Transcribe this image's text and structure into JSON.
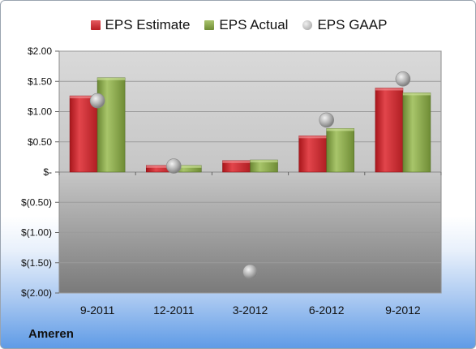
{
  "chart_data": {
    "type": "bar",
    "categories": [
      "9-2011",
      "12-2011",
      "3-2012",
      "6-2012",
      "9-2012"
    ],
    "series": [
      {
        "name": "EPS Estimate",
        "kind": "bar",
        "color": "#c8252b",
        "values": [
          1.26,
          0.11,
          0.19,
          0.6,
          1.39
        ]
      },
      {
        "name": "EPS Actual",
        "kind": "bar",
        "color": "#8aaa4a",
        "values": [
          1.56,
          0.11,
          0.2,
          0.72,
          1.31
        ]
      },
      {
        "name": "EPS GAAP",
        "kind": "scatter",
        "color": "#a6a6a6",
        "values": [
          1.18,
          0.1,
          -1.65,
          0.86,
          1.54
        ]
      }
    ],
    "ylim": [
      -2.0,
      2.0
    ],
    "yticks": [
      {
        "value": 2.0,
        "label": "$2.00"
      },
      {
        "value": 1.5,
        "label": "$1.50"
      },
      {
        "value": 1.0,
        "label": "$1.00"
      },
      {
        "value": 0.5,
        "label": "$0.50"
      },
      {
        "value": 0.0,
        "label": "$-"
      },
      {
        "value": -0.5,
        "label": "$(0.50)"
      },
      {
        "value": -1.0,
        "label": "$(1.00)"
      },
      {
        "value": -1.5,
        "label": "$(1.50)"
      },
      {
        "value": -2.0,
        "label": "$(2.00)"
      }
    ],
    "legend_position": "top",
    "grid": true,
    "title": "",
    "xlabel": "",
    "ylabel": ""
  },
  "footer": {
    "company": "Ameren"
  }
}
